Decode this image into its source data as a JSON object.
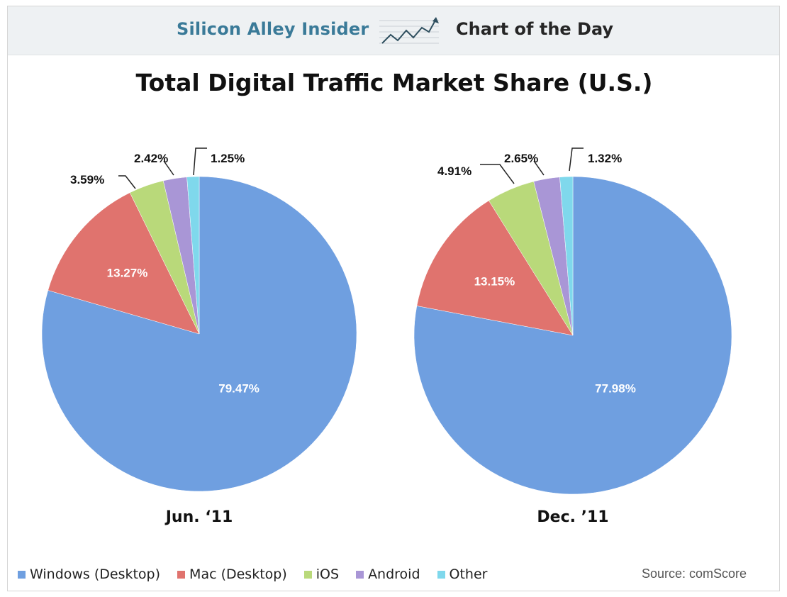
{
  "header": {
    "brand": "Silicon Alley Insider",
    "section": "Chart of the Day",
    "logo_icon": "trend-arrow-icon"
  },
  "colors": {
    "windows": "#6f9fe0",
    "mac": "#e0736e",
    "ios": "#b9d97a",
    "android": "#a996d6",
    "other": "#7fd8ec",
    "header_bg": "#eef1f3",
    "brand_text": "#3a7a98"
  },
  "chart_data": [
    {
      "type": "pie",
      "title": "Total Digital Traffic Market Share (U.S.)",
      "label": "Jun. ‘11",
      "slices": [
        {
          "name": "Windows (Desktop)",
          "value": 79.47,
          "label": "79.47%"
        },
        {
          "name": "Mac (Desktop)",
          "value": 13.27,
          "label": "13.27%"
        },
        {
          "name": "iOS",
          "value": 3.59,
          "label": "3.59%"
        },
        {
          "name": "Android",
          "value": 2.42,
          "label": "2.42%"
        },
        {
          "name": "Other",
          "value": 1.25,
          "label": "1.25%"
        }
      ]
    },
    {
      "type": "pie",
      "title": "Total Digital Traffic Market Share (U.S.)",
      "label": "Dec. ’11",
      "slices": [
        {
          "name": "Windows (Desktop)",
          "value": 77.98,
          "label": "77.98%"
        },
        {
          "name": "Mac (Desktop)",
          "value": 13.15,
          "label": "13.15%"
        },
        {
          "name": "iOS",
          "value": 4.91,
          "label": "4.91%"
        },
        {
          "name": "Android",
          "value": 2.65,
          "label": "2.65%"
        },
        {
          "name": "Other",
          "value": 1.32,
          "label": "1.32%"
        }
      ]
    }
  ],
  "legend": [
    {
      "label": "Windows (Desktop)",
      "color_key": "windows"
    },
    {
      "label": "Mac (Desktop)",
      "color_key": "mac"
    },
    {
      "label": "iOS",
      "color_key": "ios"
    },
    {
      "label": "Android",
      "color_key": "android"
    },
    {
      "label": "Other",
      "color_key": "other"
    }
  ],
  "source": "Source: comScore"
}
